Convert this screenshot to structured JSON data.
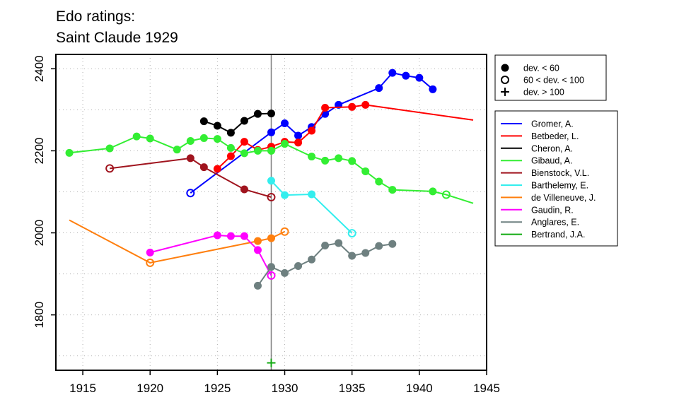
{
  "chart_data": {
    "type": "line",
    "title": [
      "Edo ratings:",
      "Saint Claude 1929"
    ],
    "xlabel": "",
    "ylabel": "",
    "xlim": [
      1913,
      1945
    ],
    "ylim": [
      1665,
      2435
    ],
    "x_ticks": [
      1915,
      1920,
      1925,
      1930,
      1935,
      1940,
      1945
    ],
    "y_ticks": [
      1800,
      2000,
      2200,
      2400
    ],
    "grid": true,
    "vline_x": 1929,
    "marker_legend": [
      {
        "symbol": "filled-circle",
        "label": "dev. < 60"
      },
      {
        "symbol": "open-circle",
        "label": "60 < dev. < 100"
      },
      {
        "symbol": "plus",
        "label": "dev. > 100"
      }
    ],
    "series": [
      {
        "name": "Gromer, A.",
        "color": "#0000ff",
        "points": [
          [
            1923,
            2097,
            "o"
          ],
          [
            1929,
            2245,
            "f"
          ],
          [
            1930,
            2267,
            "f"
          ],
          [
            1931,
            2237,
            "f"
          ],
          [
            1932,
            2258,
            "f"
          ],
          [
            1933,
            2290,
            "f"
          ],
          [
            1934,
            2312,
            "f"
          ],
          [
            1937,
            2353,
            "f"
          ],
          [
            1938,
            2390,
            "f"
          ],
          [
            1939,
            2383,
            "f"
          ],
          [
            1940,
            2378,
            "f"
          ],
          [
            1941,
            2350,
            "f"
          ]
        ]
      },
      {
        "name": "Betbeder, L.",
        "color": "#ff0000",
        "points": [
          [
            1925,
            2156,
            "f"
          ],
          [
            1926,
            2187,
            "f"
          ],
          [
            1927,
            2222,
            "f"
          ],
          [
            1928,
            2202,
            "f"
          ],
          [
            1929,
            2210,
            "f"
          ],
          [
            1930,
            2222,
            "f"
          ],
          [
            1931,
            2220,
            "f"
          ],
          [
            1932,
            2249,
            "f"
          ],
          [
            1933,
            2305,
            "f"
          ],
          [
            1935,
            2307,
            "f"
          ],
          [
            1936,
            2312,
            "f"
          ],
          [
            1944,
            2275,
            "n"
          ]
        ]
      },
      {
        "name": "Cheron, A.",
        "color": "#000000",
        "points": [
          [
            1924,
            2272,
            "f"
          ],
          [
            1925,
            2261,
            "f"
          ],
          [
            1926,
            2244,
            "f"
          ],
          [
            1927,
            2273,
            "f"
          ],
          [
            1928,
            2290,
            "f"
          ],
          [
            1929,
            2291,
            "f"
          ]
        ]
      },
      {
        "name": "Gibaud, A.",
        "color": "#33ee33",
        "points": [
          [
            1914,
            2195,
            "f"
          ],
          [
            1917,
            2206,
            "f"
          ],
          [
            1919,
            2235,
            "f"
          ],
          [
            1920,
            2230,
            "f"
          ],
          [
            1922,
            2203,
            "f"
          ],
          [
            1923,
            2224,
            "f"
          ],
          [
            1924,
            2231,
            "f"
          ],
          [
            1925,
            2229,
            "f"
          ],
          [
            1926,
            2207,
            "f"
          ],
          [
            1927,
            2194,
            "f"
          ],
          [
            1928,
            2200,
            "f"
          ],
          [
            1929,
            2200,
            "f"
          ],
          [
            1930,
            2217,
            "f"
          ],
          [
            1932,
            2186,
            "f"
          ],
          [
            1933,
            2176,
            "f"
          ],
          [
            1934,
            2182,
            "f"
          ],
          [
            1935,
            2175,
            "f"
          ],
          [
            1936,
            2150,
            "f"
          ],
          [
            1937,
            2125,
            "f"
          ],
          [
            1938,
            2105,
            "f"
          ],
          [
            1941,
            2101,
            "f"
          ],
          [
            1942,
            2093,
            "o"
          ],
          [
            1944,
            2072,
            "n"
          ]
        ]
      },
      {
        "name": "Bienstock, V.L.",
        "color": "#a0141e",
        "points": [
          [
            1917,
            2157,
            "o"
          ],
          [
            1923,
            2182,
            "f"
          ],
          [
            1924,
            2160,
            "f"
          ],
          [
            1927,
            2106,
            "f"
          ],
          [
            1929,
            2087,
            "o"
          ]
        ]
      },
      {
        "name": "Barthelemy, E.",
        "color": "#33eeee",
        "points": [
          [
            1929,
            2127,
            "f"
          ],
          [
            1930,
            2092,
            "f"
          ],
          [
            1932,
            2094,
            "f"
          ],
          [
            1935,
            1999,
            "o"
          ]
        ]
      },
      {
        "name": "de Villeneuve, J.",
        "color": "#ff7f0e",
        "points": [
          [
            1914,
            2031,
            "n"
          ],
          [
            1920,
            1927,
            "o"
          ],
          [
            1928,
            1980,
            "f"
          ],
          [
            1929,
            1987,
            "f"
          ],
          [
            1930,
            2003,
            "o"
          ]
        ]
      },
      {
        "name": "Gaudin, R.",
        "color": "#ff00ff",
        "points": [
          [
            1920,
            1952,
            "f"
          ],
          [
            1925,
            1994,
            "f"
          ],
          [
            1926,
            1992,
            "f"
          ],
          [
            1927,
            1992,
            "f"
          ],
          [
            1928,
            1958,
            "f"
          ],
          [
            1929,
            1896,
            "o"
          ]
        ]
      },
      {
        "name": "Anglares, E.",
        "color": "#6e8080",
        "points": [
          [
            1928,
            1871,
            "f"
          ],
          [
            1929,
            1917,
            "f"
          ],
          [
            1930,
            1902,
            "f"
          ],
          [
            1931,
            1919,
            "f"
          ],
          [
            1932,
            1935,
            "f"
          ],
          [
            1933,
            1969,
            "f"
          ],
          [
            1934,
            1975,
            "f"
          ],
          [
            1935,
            1944,
            "f"
          ],
          [
            1936,
            1951,
            "f"
          ],
          [
            1937,
            1968,
            "f"
          ],
          [
            1938,
            1973,
            "f"
          ]
        ]
      },
      {
        "name": "Bertrand, J.A.",
        "color": "#11aa11",
        "points": [
          [
            1929,
            1683,
            "p"
          ]
        ]
      }
    ]
  }
}
